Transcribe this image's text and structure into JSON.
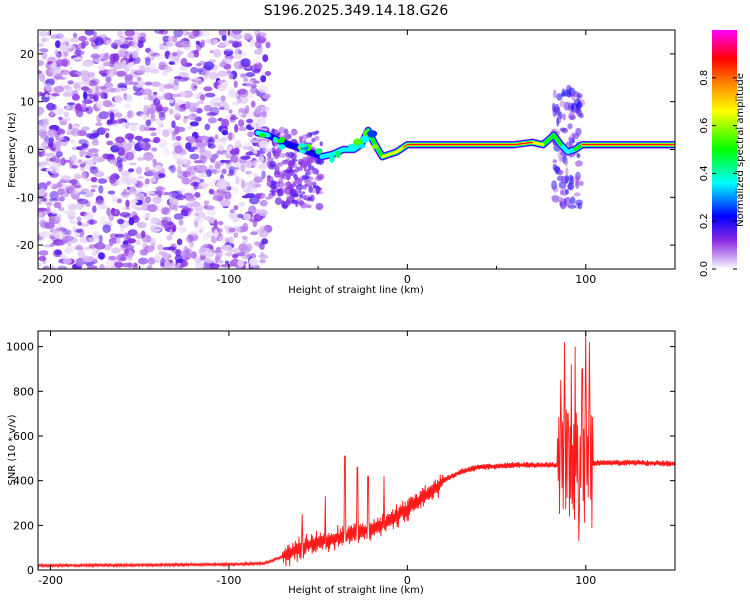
{
  "title": "S196.2025.349.14.18.G26",
  "chart_data": [
    {
      "type": "heatmap",
      "name": "spectrogram",
      "xlabel": "Height of straight line (km)",
      "ylabel": "Frequency (Hz)",
      "xlim": [
        -207,
        150
      ],
      "ylim": [
        -25,
        25
      ],
      "xticks": [
        -200,
        -100,
        0,
        100
      ],
      "xtick_labels": [
        "-200",
        "-100",
        "0",
        "100"
      ],
      "yticks": [
        20,
        10,
        0,
        -10,
        -20
      ],
      "ytick_labels": [
        "20",
        "10",
        "0",
        "-10",
        "-20"
      ],
      "colorbar": {
        "label": "Normalized spectral amplitude",
        "range": [
          0,
          1
        ],
        "ticks": [
          0,
          0.2,
          0.4,
          0.6,
          0.8
        ],
        "tick_labels": [
          "0.0",
          "0.2",
          "0.4",
          "0.6",
          "0.8"
        ],
        "colormap": [
          "#ffffff",
          "#8a2be2",
          "#0000ff",
          "#00ffff",
          "#00ff00",
          "#ffff00",
          "#ff8000",
          "#ff0000",
          "#ff00ff"
        ]
      },
      "noise_region_x": [
        -207,
        -78
      ],
      "ridge": {
        "x": [
          -84,
          -78,
          -70,
          -62,
          -55,
          -48,
          -42,
          -36,
          -30,
          -26,
          -22,
          -18,
          -14,
          -10,
          -6,
          -2,
          0,
          20,
          40,
          60,
          70,
          76,
          82,
          86,
          90,
          94,
          98,
          110,
          130,
          150
        ],
        "hz": [
          3.5,
          3,
          1.5,
          0.5,
          -0.5,
          -1.5,
          -1,
          0,
          0,
          1,
          4,
          1,
          -1.5,
          -1,
          -0.5,
          0.5,
          1,
          1,
          1,
          1,
          1.5,
          1,
          3,
          1,
          -0.5,
          0,
          1,
          1,
          1,
          1
        ],
        "strength": [
          0.4,
          0.35,
          0.3,
          0.3,
          0.3,
          0.35,
          0.35,
          0.4,
          0.4,
          0.5,
          0.55,
          0.6,
          0.65,
          0.7,
          0.75,
          0.8,
          0.95,
          0.95,
          0.95,
          0.95,
          0.9,
          0.75,
          0.6,
          0.55,
          0.4,
          0.6,
          0.9,
          0.95,
          0.95,
          0.95
        ]
      }
    },
    {
      "type": "line",
      "name": "snr",
      "xlabel": "Height of straight line (km)",
      "ylabel": "SNR (10 * v/v)",
      "xlim": [
        -207,
        150
      ],
      "ylim": [
        0,
        1070
      ],
      "xticks": [
        -200,
        -100,
        0,
        100
      ],
      "xtick_labels": [
        "-200",
        "-100",
        "0",
        "100"
      ],
      "yticks": [
        0,
        200,
        400,
        600,
        800,
        1000
      ],
      "ytick_labels": [
        "0",
        "200",
        "400",
        "600",
        "800",
        "1000"
      ],
      "color": "#ff1a1a",
      "baseline_points": {
        "x": [
          -207,
          -150,
          -100,
          -80,
          -70,
          -62,
          -55,
          -50,
          -40,
          -30,
          -20,
          -10,
          0,
          10,
          20,
          30,
          40,
          60,
          80,
          85,
          110,
          130,
          150
        ],
        "y": [
          20,
          22,
          25,
          30,
          60,
          90,
          110,
          120,
          140,
          160,
          180,
          220,
          270,
          330,
          400,
          440,
          460,
          470,
          470,
          470,
          480,
          480,
          475
        ]
      },
      "spikes": {
        "x": [
          -59,
          -46,
          -35,
          -28,
          -22,
          -13,
          86,
          88,
          90,
          92,
          94,
          96,
          98,
          100,
          102
        ],
        "y": [
          250,
          330,
          510,
          460,
          420,
          420,
          850,
          1020,
          700,
          920,
          1000,
          130,
          900,
          1070,
          1020
        ]
      }
    }
  ]
}
